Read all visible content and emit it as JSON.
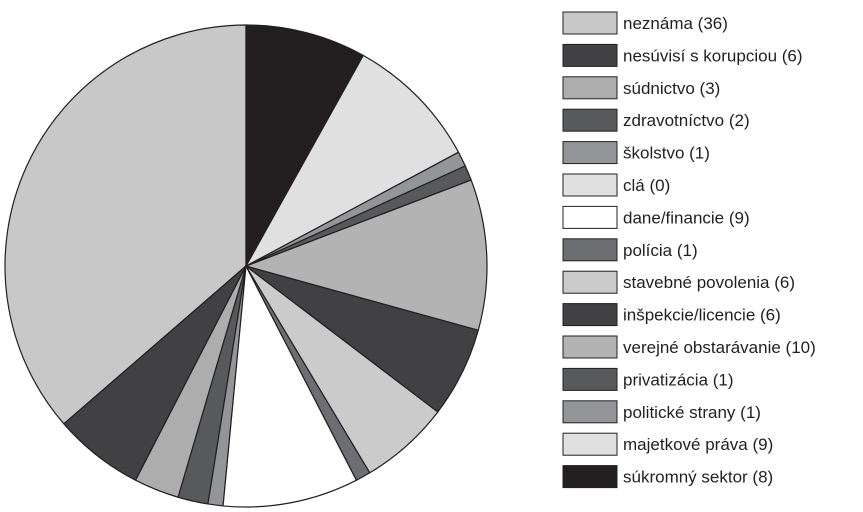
{
  "chart_data": {
    "type": "pie",
    "direction": "counter-clockwise",
    "title": "",
    "slices": [
      {
        "label": "neznáma (36)",
        "value": 36,
        "color": "#c8c8c8"
      },
      {
        "label": "nesúvisí s korupciou (6)",
        "value": 6,
        "color": "#414042"
      },
      {
        "label": "súdnictvo (3)",
        "value": 3,
        "color": "#adadad"
      },
      {
        "label": "zdravotníctvo (2)",
        "value": 2,
        "color": "#58595b"
      },
      {
        "label": "školstvo (1)",
        "value": 1,
        "color": "#939598"
      },
      {
        "label": "clá (0)",
        "value": 0,
        "color": "#e0e0e0"
      },
      {
        "label": "dane/financie (9)",
        "value": 9,
        "color": "#ffffff"
      },
      {
        "label": "polícia (1)",
        "value": 1,
        "color": "#6d6e71"
      },
      {
        "label": "stavebné povolenia (6)",
        "value": 6,
        "color": "#cbcbcb"
      },
      {
        "label": "inšpekcie/licencie (6)",
        "value": 6,
        "color": "#414042"
      },
      {
        "label": "verejné obstarávanie (10)",
        "value": 10,
        "color": "#b3b3b3"
      },
      {
        "label": "privatizácia (1)",
        "value": 1,
        "color": "#58595b"
      },
      {
        "label": "politické strany (1)",
        "value": 1,
        "color": "#939598"
      },
      {
        "label": "majetkové práva (9)",
        "value": 9,
        "color": "#e0e0e0"
      },
      {
        "label": "súkromný sektor (8)",
        "value": 8,
        "color": "#231f20"
      }
    ],
    "legend_position": "right"
  }
}
